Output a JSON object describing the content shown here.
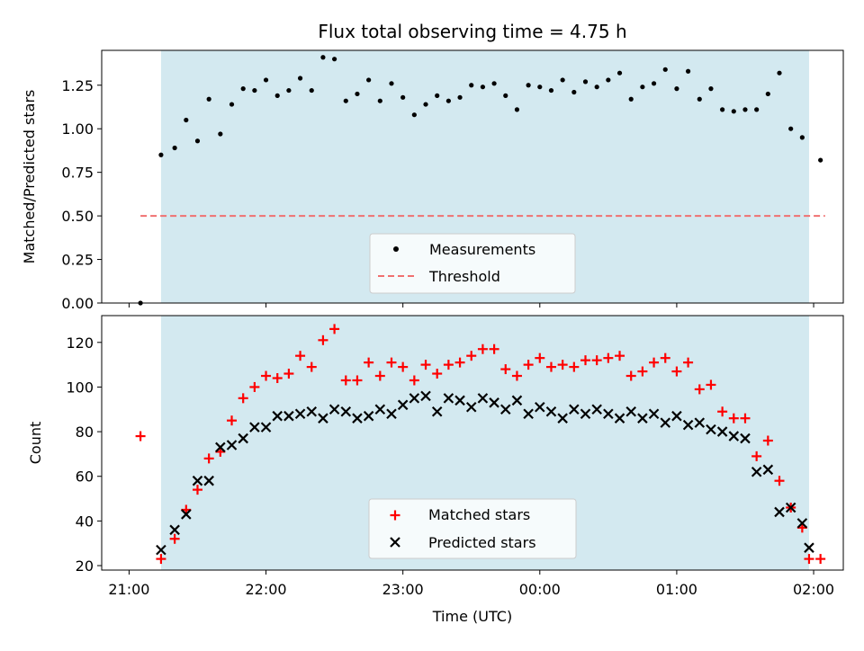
{
  "chart_data": [
    {
      "type": "scatter",
      "title": "Flux total observing time = 4.75 h",
      "xlabel": "",
      "ylabel": "Matched/Predicted stars",
      "ylim": [
        0.0,
        1.45
      ],
      "yticks": [
        "0.00",
        "0.25",
        "0.50",
        "0.75",
        "1.00",
        "1.25"
      ],
      "shaded_region": [
        "21:14",
        "01:58"
      ],
      "threshold": {
        "name": "Threshold",
        "value": 0.5,
        "x_range": [
          "21:05",
          "02:05"
        ],
        "style": "dashed",
        "color": "#f07070"
      },
      "series": [
        {
          "name": "Measurements",
          "marker": "dot",
          "color": "#000000",
          "x": [
            "21:05",
            "21:14",
            "21:20",
            "21:25",
            "21:30",
            "21:35",
            "21:40",
            "21:45",
            "21:50",
            "21:55",
            "22:00",
            "22:05",
            "22:10",
            "22:15",
            "22:20",
            "22:25",
            "22:30",
            "22:35",
            "22:40",
            "22:45",
            "22:50",
            "22:55",
            "23:00",
            "23:05",
            "23:10",
            "23:15",
            "23:20",
            "23:25",
            "23:30",
            "23:35",
            "23:40",
            "23:45",
            "23:50",
            "23:55",
            "00:00",
            "00:05",
            "00:10",
            "00:15",
            "00:20",
            "00:25",
            "00:30",
            "00:35",
            "00:40",
            "00:45",
            "00:50",
            "00:55",
            "01:00",
            "01:05",
            "01:10",
            "01:15",
            "01:20",
            "01:25",
            "01:30",
            "01:35",
            "01:40",
            "01:45",
            "01:50",
            "01:55",
            "02:03"
          ],
          "y": [
            0.0,
            0.85,
            0.89,
            1.05,
            0.93,
            1.17,
            0.97,
            1.14,
            1.23,
            1.22,
            1.28,
            1.19,
            1.22,
            1.29,
            1.22,
            1.41,
            1.4,
            1.16,
            1.2,
            1.28,
            1.16,
            1.26,
            1.18,
            1.08,
            1.14,
            1.19,
            1.16,
            1.18,
            1.25,
            1.24,
            1.26,
            1.19,
            1.11,
            1.25,
            1.24,
            1.22,
            1.28,
            1.21,
            1.27,
            1.24,
            1.28,
            1.32,
            1.17,
            1.24,
            1.26,
            1.34,
            1.23,
            1.33,
            1.17,
            1.23,
            1.11,
            1.1,
            1.11,
            1.11,
            1.2,
            1.32,
            1.0,
            0.95,
            0.82
          ]
        }
      ],
      "legend": [
        "Measurements",
        "Threshold"
      ],
      "legend_position": "lower-center"
    },
    {
      "type": "scatter",
      "title": "",
      "xlabel": "Time (UTC)",
      "ylabel": "Count",
      "ylim": [
        18,
        132
      ],
      "yticks": [
        "20",
        "40",
        "60",
        "80",
        "100",
        "120"
      ],
      "xticks": [
        "21:00",
        "22:00",
        "23:00",
        "00:00",
        "01:00",
        "02:00"
      ],
      "shaded_region": [
        "21:14",
        "01:58"
      ],
      "series": [
        {
          "name": "Matched stars",
          "marker": "plus",
          "color": "#ff0000",
          "x": [
            "21:05",
            "21:14",
            "21:20",
            "21:25",
            "21:30",
            "21:35",
            "21:40",
            "21:45",
            "21:50",
            "21:55",
            "22:00",
            "22:05",
            "22:10",
            "22:15",
            "22:20",
            "22:25",
            "22:30",
            "22:35",
            "22:40",
            "22:45",
            "22:50",
            "22:55",
            "23:00",
            "23:05",
            "23:10",
            "23:15",
            "23:20",
            "23:25",
            "23:30",
            "23:35",
            "23:40",
            "23:45",
            "23:50",
            "23:55",
            "00:00",
            "00:05",
            "00:10",
            "00:15",
            "00:20",
            "00:25",
            "00:30",
            "00:35",
            "00:40",
            "00:45",
            "00:50",
            "00:55",
            "01:00",
            "01:05",
            "01:10",
            "01:15",
            "01:20",
            "01:25",
            "01:30",
            "01:35",
            "01:40",
            "01:45",
            "01:50",
            "01:55",
            "01:58",
            "02:03"
          ],
          "y": [
            78,
            23,
            32,
            45,
            54,
            68,
            71,
            85,
            95,
            100,
            105,
            104,
            106,
            114,
            109,
            121,
            126,
            103,
            103,
            111,
            105,
            111,
            109,
            103,
            110,
            106,
            110,
            111,
            114,
            117,
            117,
            108,
            105,
            110,
            113,
            109,
            110,
            109,
            112,
            112,
            113,
            114,
            105,
            107,
            111,
            113,
            107,
            111,
            99,
            101,
            89,
            86,
            86,
            69,
            76,
            58,
            46,
            37,
            23,
            23
          ]
        },
        {
          "name": "Predicted stars",
          "marker": "x",
          "color": "#000000",
          "x": [
            "21:14",
            "21:20",
            "21:25",
            "21:30",
            "21:35",
            "21:40",
            "21:45",
            "21:50",
            "21:55",
            "22:00",
            "22:05",
            "22:10",
            "22:15",
            "22:20",
            "22:25",
            "22:30",
            "22:35",
            "22:40",
            "22:45",
            "22:50",
            "22:55",
            "23:00",
            "23:05",
            "23:10",
            "23:15",
            "23:20",
            "23:25",
            "23:30",
            "23:35",
            "23:40",
            "23:45",
            "23:50",
            "23:55",
            "00:00",
            "00:05",
            "00:10",
            "00:15",
            "00:20",
            "00:25",
            "00:30",
            "00:35",
            "00:40",
            "00:45",
            "00:50",
            "00:55",
            "01:00",
            "01:05",
            "01:10",
            "01:15",
            "01:20",
            "01:25",
            "01:30",
            "01:35",
            "01:40",
            "01:45",
            "01:50",
            "01:55",
            "01:58"
          ],
          "y": [
            27,
            36,
            43,
            58,
            58,
            73,
            74,
            77,
            82,
            82,
            87,
            87,
            88,
            89,
            86,
            90,
            89,
            86,
            87,
            90,
            88,
            92,
            95,
            96,
            89,
            95,
            94,
            91,
            95,
            93,
            90,
            94,
            88,
            91,
            89,
            86,
            90,
            88,
            90,
            88,
            86,
            89,
            86,
            88,
            84,
            87,
            83,
            84,
            81,
            80,
            78,
            77,
            62,
            63,
            44,
            46,
            39,
            28
          ]
        }
      ],
      "legend": [
        "Matched stars",
        "Predicted stars"
      ],
      "legend_position": "lower-center"
    }
  ],
  "colors": {
    "shade": "#d3e9f0",
    "matched": "#ff0000",
    "predicted": "#000000",
    "threshold": "#f07070"
  }
}
